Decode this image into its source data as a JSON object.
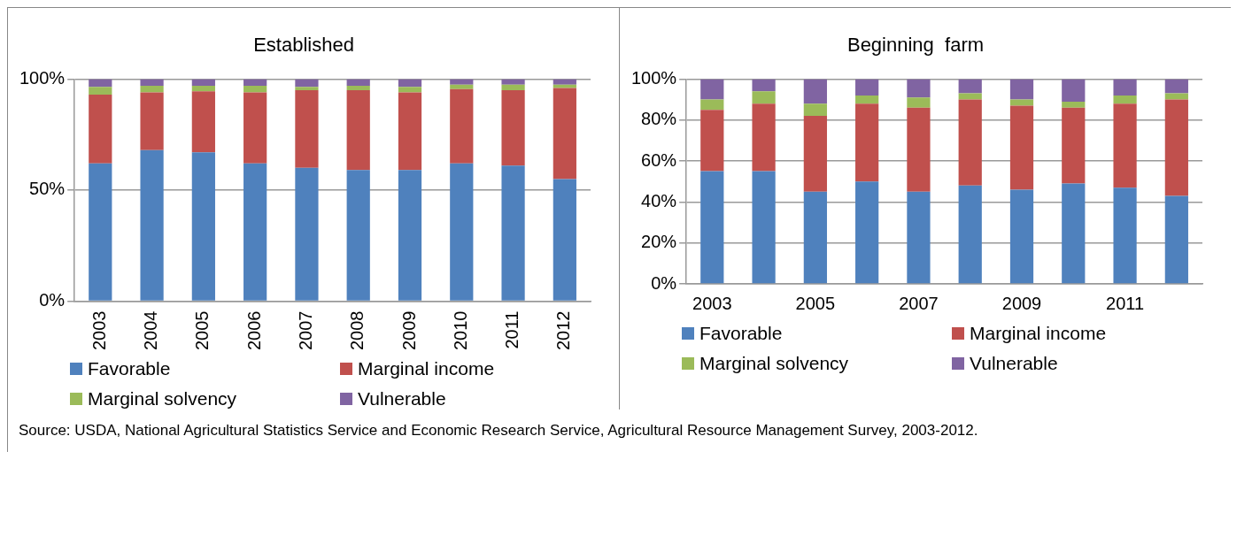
{
  "chart_data": [
    {
      "type": "bar",
      "title": "Established",
      "stacked": true,
      "categories": [
        "2003",
        "2004",
        "2005",
        "2006",
        "2007",
        "2008",
        "2009",
        "2010",
        "2011",
        "2012"
      ],
      "series": [
        {
          "name": "Favorable",
          "color": "#4f81bd",
          "values": [
            62,
            68,
            67,
            62,
            60,
            59,
            59,
            62,
            61,
            55
          ]
        },
        {
          "name": "Marginal income",
          "color": "#c0504d",
          "values": [
            31,
            26,
            27.5,
            32,
            35,
            36,
            35,
            33.5,
            34,
            41
          ]
        },
        {
          "name": "Marginal solvency",
          "color": "#9bbb59",
          "values": [
            3.5,
            3,
            2.5,
            3,
            1.5,
            2,
            2.5,
            2,
            2.5,
            1.5
          ]
        },
        {
          "name": "Vulnerable",
          "color": "#8064a2",
          "values": [
            3.5,
            3,
            3,
            3,
            3.5,
            3,
            3.5,
            2.5,
            2.5,
            2.5
          ]
        }
      ],
      "ylim": [
        0,
        100
      ],
      "yticks": [
        {
          "value": 0,
          "label": "0%"
        },
        {
          "value": 50,
          "label": "50%"
        },
        {
          "value": 100,
          "label": "100%"
        }
      ],
      "grid": "y",
      "legend": "bottom",
      "annotations": [
        "Source: USDA, National Agricultural Statistics Service and Economic Research Service, Agricultural Resource Management Survey, 2003-2012."
      ]
    },
    {
      "type": "bar",
      "title": "Beginning  farm",
      "stacked": true,
      "categories": [
        "2003",
        null,
        "2005",
        null,
        "2007",
        null,
        "2009",
        null,
        "2011",
        null
      ],
      "series": [
        {
          "name": "Favorable",
          "color": "#4f81bd",
          "values": [
            55,
            55,
            45,
            50,
            45,
            48,
            46,
            49,
            47,
            43
          ]
        },
        {
          "name": "Marginal income",
          "color": "#c0504d",
          "values": [
            30,
            33,
            37,
            38,
            41,
            42,
            41,
            37,
            41,
            47
          ]
        },
        {
          "name": "Marginal solvency",
          "color": "#9bbb59",
          "values": [
            5,
            6,
            6,
            4,
            5,
            3,
            3,
            3,
            4,
            3
          ]
        },
        {
          "name": "Vulnerable",
          "color": "#8064a2",
          "values": [
            10,
            6,
            12,
            8,
            9,
            7,
            10,
            11,
            8,
            7
          ]
        }
      ],
      "ylim": [
        0,
        100
      ],
      "yticks": [
        {
          "value": 0,
          "label": "0%"
        },
        {
          "value": 20,
          "label": "20%"
        },
        {
          "value": 40,
          "label": "40%"
        },
        {
          "value": 60,
          "label": "60%"
        },
        {
          "value": 80,
          "label": "80%"
        },
        {
          "value": 100,
          "label": "100%"
        }
      ],
      "grid": "y",
      "legend": "bottom"
    }
  ]
}
